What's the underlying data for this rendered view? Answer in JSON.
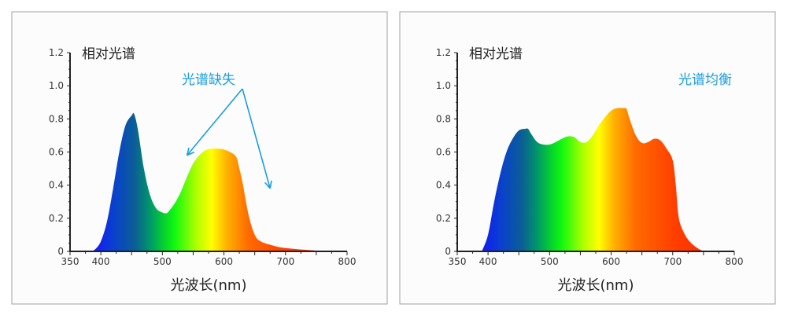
{
  "chart_data": [
    {
      "type": "area",
      "title": "相对光谱",
      "xlabel": "光波长(nm)",
      "ylabel": "",
      "xlim": [
        350,
        800
      ],
      "ylim": [
        0,
        1.2
      ],
      "xticks": [
        "350",
        "400",
        "500",
        "600",
        "700",
        "800"
      ],
      "yticks": [
        "0",
        "0.2",
        "0.4",
        "0.6",
        "0.8",
        "1.0",
        "1.2"
      ],
      "fill": "visible-spectrum gradient",
      "annotation": {
        "text": "光谱缺失",
        "color": "#1a9ee0",
        "arrows_to_nm": [
          [
            540,
            0.58
          ],
          [
            675,
            0.38
          ]
        ]
      },
      "x": [
        383,
        390,
        400,
        410,
        420,
        430,
        440,
        450,
        454,
        460,
        470,
        480,
        490,
        500,
        506,
        510,
        520,
        530,
        540,
        550,
        560,
        570,
        580,
        590,
        600,
        610,
        620,
        625,
        630,
        640,
        650,
        660,
        680,
        700,
        750,
        800
      ],
      "y": [
        0,
        0.01,
        0.06,
        0.18,
        0.38,
        0.6,
        0.76,
        0.82,
        0.83,
        0.74,
        0.5,
        0.34,
        0.26,
        0.235,
        0.23,
        0.24,
        0.29,
        0.36,
        0.45,
        0.53,
        0.58,
        0.61,
        0.62,
        0.62,
        0.615,
        0.6,
        0.57,
        0.5,
        0.42,
        0.22,
        0.1,
        0.06,
        0.035,
        0.02,
        0.005,
        0
      ]
    },
    {
      "type": "area",
      "title": "相对光谱",
      "xlabel": "光波长(nm)",
      "ylabel": "",
      "xlim": [
        350,
        800
      ],
      "ylim": [
        0,
        1.2
      ],
      "xticks": [
        "350",
        "400",
        "500",
        "600",
        "700",
        "800"
      ],
      "yticks": [
        "0",
        "0.2",
        "0.4",
        "0.6",
        "0.8",
        "1.0",
        "1.2"
      ],
      "fill": "visible-spectrum gradient",
      "annotation": {
        "text": "光谱均衡",
        "color": "#1a9ee0"
      },
      "x": [
        390,
        400,
        410,
        420,
        430,
        440,
        450,
        460,
        465,
        470,
        480,
        490,
        500,
        510,
        520,
        530,
        540,
        550,
        560,
        570,
        580,
        590,
        600,
        610,
        620,
        625,
        630,
        640,
        650,
        660,
        670,
        680,
        690,
        700,
        705,
        710,
        720,
        730,
        740,
        750
      ],
      "y": [
        0,
        0.1,
        0.3,
        0.47,
        0.6,
        0.68,
        0.73,
        0.74,
        0.74,
        0.71,
        0.66,
        0.645,
        0.645,
        0.66,
        0.68,
        0.695,
        0.69,
        0.66,
        0.66,
        0.7,
        0.76,
        0.81,
        0.85,
        0.865,
        0.865,
        0.86,
        0.8,
        0.7,
        0.655,
        0.66,
        0.68,
        0.67,
        0.62,
        0.55,
        0.4,
        0.2,
        0.1,
        0.05,
        0.02,
        0
      ]
    }
  ]
}
